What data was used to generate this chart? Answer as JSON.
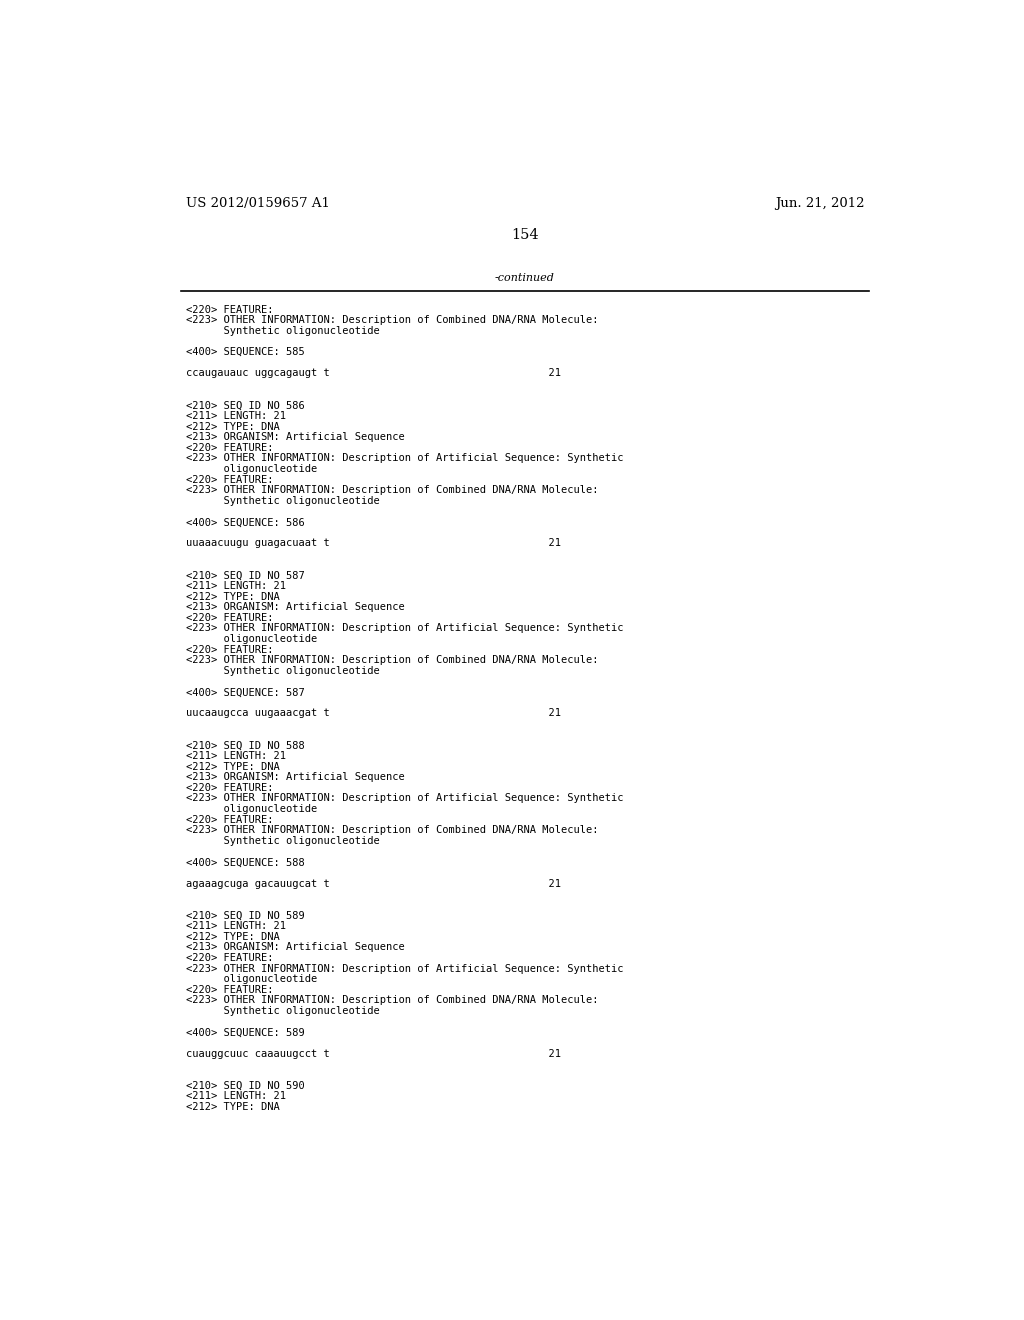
{
  "background_color": "#ffffff",
  "header_left": "US 2012/0159657 A1",
  "header_right": "Jun. 21, 2012",
  "page_number": "154",
  "continued_text": "-continued",
  "font_size_mono": 7.5,
  "font_size_header": 9.5,
  "font_size_page": 10.5,
  "content": [
    "<220> FEATURE:",
    "<223> OTHER INFORMATION: Description of Combined DNA/RNA Molecule:",
    "      Synthetic oligonucleotide",
    "",
    "<400> SEQUENCE: 585",
    "",
    "ccaugauauc uggcagaugt t                                   21",
    "",
    "",
    "<210> SEQ ID NO 586",
    "<211> LENGTH: 21",
    "<212> TYPE: DNA",
    "<213> ORGANISM: Artificial Sequence",
    "<220> FEATURE:",
    "<223> OTHER INFORMATION: Description of Artificial Sequence: Synthetic",
    "      oligonucleotide",
    "<220> FEATURE:",
    "<223> OTHER INFORMATION: Description of Combined DNA/RNA Molecule:",
    "      Synthetic oligonucleotide",
    "",
    "<400> SEQUENCE: 586",
    "",
    "uuaaacuugu guagacuaat t                                   21",
    "",
    "",
    "<210> SEQ ID NO 587",
    "<211> LENGTH: 21",
    "<212> TYPE: DNA",
    "<213> ORGANISM: Artificial Sequence",
    "<220> FEATURE:",
    "<223> OTHER INFORMATION: Description of Artificial Sequence: Synthetic",
    "      oligonucleotide",
    "<220> FEATURE:",
    "<223> OTHER INFORMATION: Description of Combined DNA/RNA Molecule:",
    "      Synthetic oligonucleotide",
    "",
    "<400> SEQUENCE: 587",
    "",
    "uucaaugcca uugaaacgat t                                   21",
    "",
    "",
    "<210> SEQ ID NO 588",
    "<211> LENGTH: 21",
    "<212> TYPE: DNA",
    "<213> ORGANISM: Artificial Sequence",
    "<220> FEATURE:",
    "<223> OTHER INFORMATION: Description of Artificial Sequence: Synthetic",
    "      oligonucleotide",
    "<220> FEATURE:",
    "<223> OTHER INFORMATION: Description of Combined DNA/RNA Molecule:",
    "      Synthetic oligonucleotide",
    "",
    "<400> SEQUENCE: 588",
    "",
    "agaaagcuga gacauugcat t                                   21",
    "",
    "",
    "<210> SEQ ID NO 589",
    "<211> LENGTH: 21",
    "<212> TYPE: DNA",
    "<213> ORGANISM: Artificial Sequence",
    "<220> FEATURE:",
    "<223> OTHER INFORMATION: Description of Artificial Sequence: Synthetic",
    "      oligonucleotide",
    "<220> FEATURE:",
    "<223> OTHER INFORMATION: Description of Combined DNA/RNA Molecule:",
    "      Synthetic oligonucleotide",
    "",
    "<400> SEQUENCE: 589",
    "",
    "cuauggcuuc caaauugcct t                                   21",
    "",
    "",
    "<210> SEQ ID NO 590",
    "<211> LENGTH: 21",
    "<212> TYPE: DNA"
  ]
}
